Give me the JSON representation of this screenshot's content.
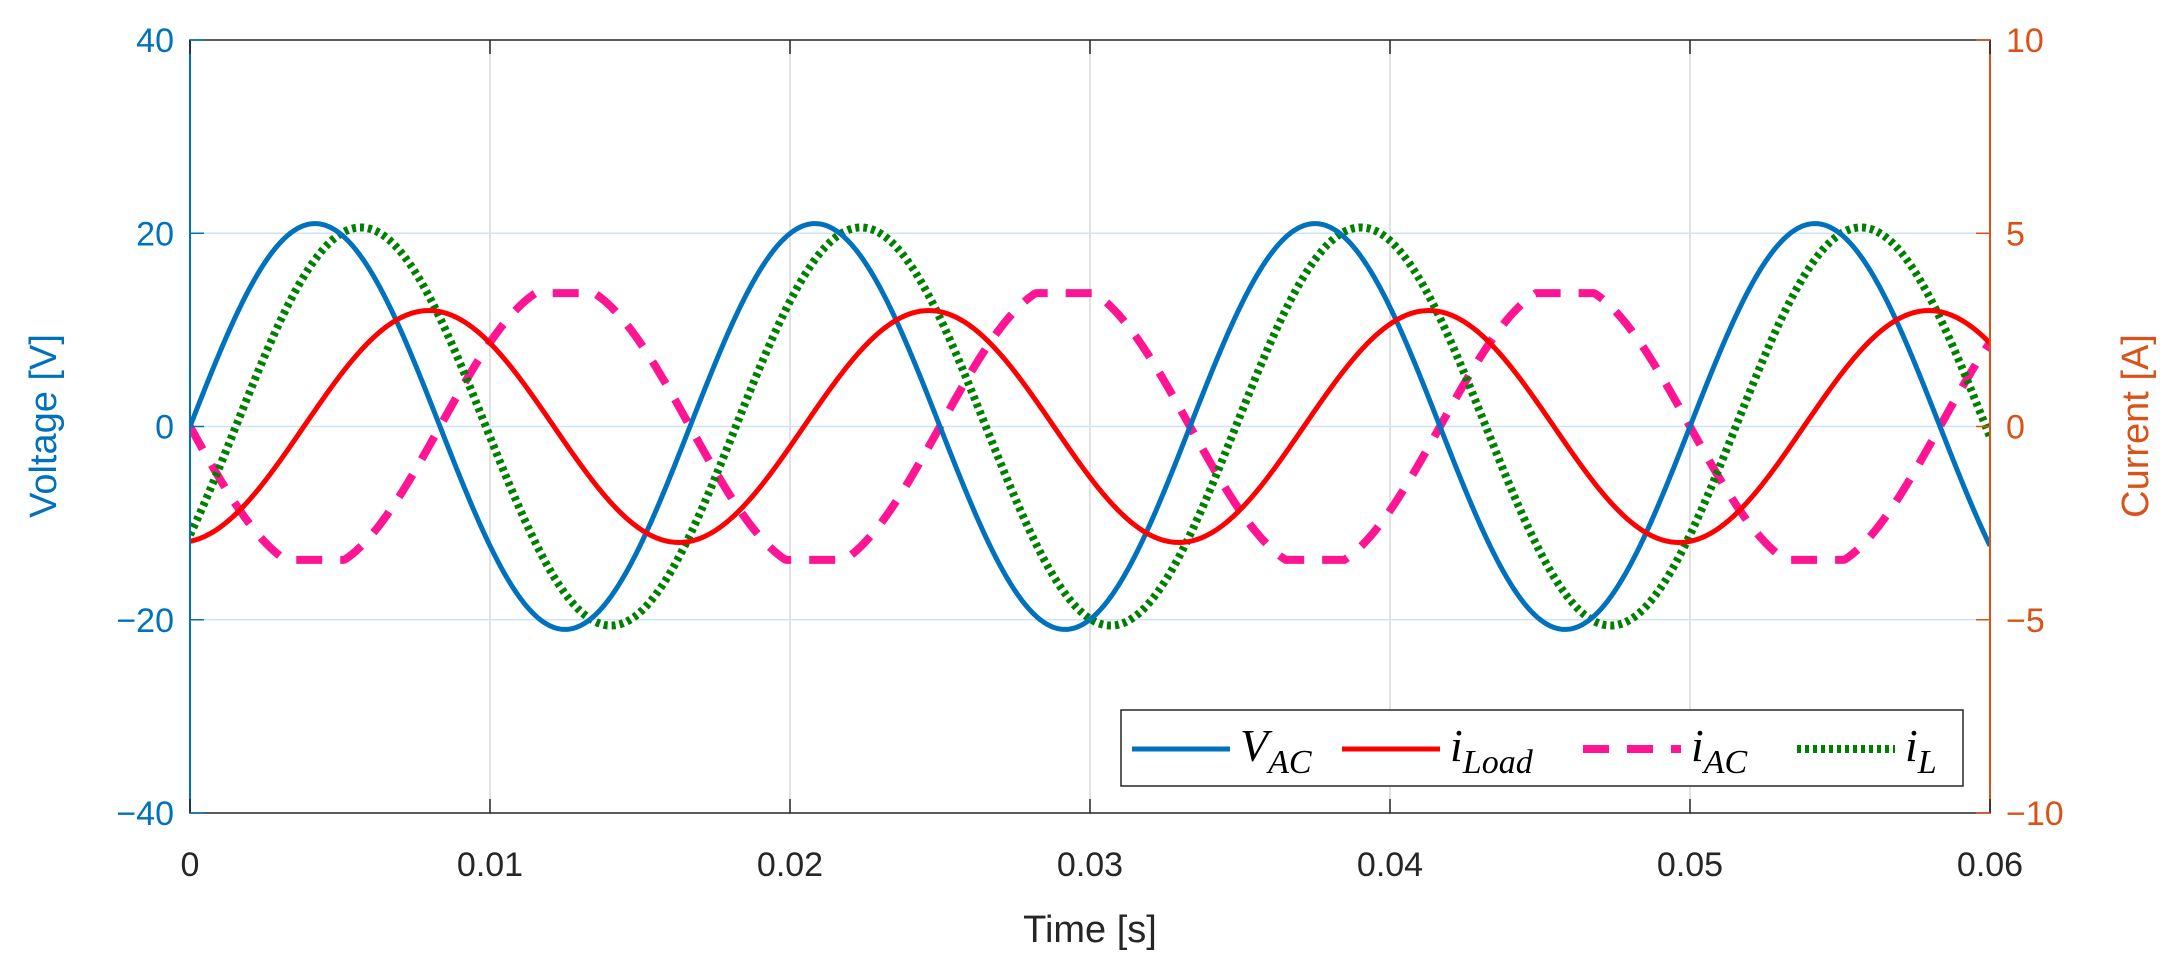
{
  "chart_data": {
    "type": "line",
    "xlabel": "Time [s]",
    "ylabel_left": "Voltage [V]",
    "ylabel_right": "Current [A]",
    "xlim": [
      0,
      0.06
    ],
    "ylim_left": [
      -40,
      40
    ],
    "ylim_right": [
      -10,
      10
    ],
    "x_ticks": [
      0,
      0.01,
      0.02,
      0.03,
      0.04,
      0.05,
      0.06
    ],
    "x_tick_labels": [
      "0",
      "0.01",
      "0.02",
      "0.03",
      "0.04",
      "0.05",
      "0.06"
    ],
    "y_left_ticks": [
      -40,
      -20,
      0,
      20,
      40
    ],
    "y_left_tick_labels": [
      "−40",
      "−20",
      "0",
      "20",
      "40"
    ],
    "y_right_ticks": [
      -10,
      -5,
      0,
      5,
      10
    ],
    "y_right_tick_labels": [
      "−10",
      "−5",
      "0",
      "5",
      "10"
    ],
    "grid": true,
    "legend_position": "bottom-right",
    "series": [
      {
        "name": "V_AC",
        "label_main": "V",
        "label_sub": "AC",
        "axis": "left",
        "color": "#0072BD",
        "style": "solid",
        "amplitude": 21,
        "frequency_hz": 60,
        "phase_deg": 0,
        "unit": "V"
      },
      {
        "name": "i_Load",
        "label_main": "i",
        "label_sub": "Load",
        "axis": "right",
        "color": "#FF0000",
        "style": "solid",
        "amplitude": 3.0,
        "frequency_hz": 60,
        "phase_deg": -82,
        "offset": 0,
        "unit": "A"
      },
      {
        "name": "i_AC",
        "label_main": "i",
        "label_sub": "AC",
        "axis": "right",
        "color": "#FF1493",
        "style": "dashed",
        "amplitude": 3.7,
        "frequency_hz": 60,
        "phase_deg": 180,
        "clip": 3.45,
        "unit": "A"
      },
      {
        "name": "i_L",
        "label_main": "i",
        "label_sub": "L",
        "axis": "right",
        "color": "#008000",
        "style": "dotted",
        "amplitude": 5.15,
        "frequency_hz": 60,
        "phase_deg": -33,
        "unit": "A"
      }
    ]
  }
}
